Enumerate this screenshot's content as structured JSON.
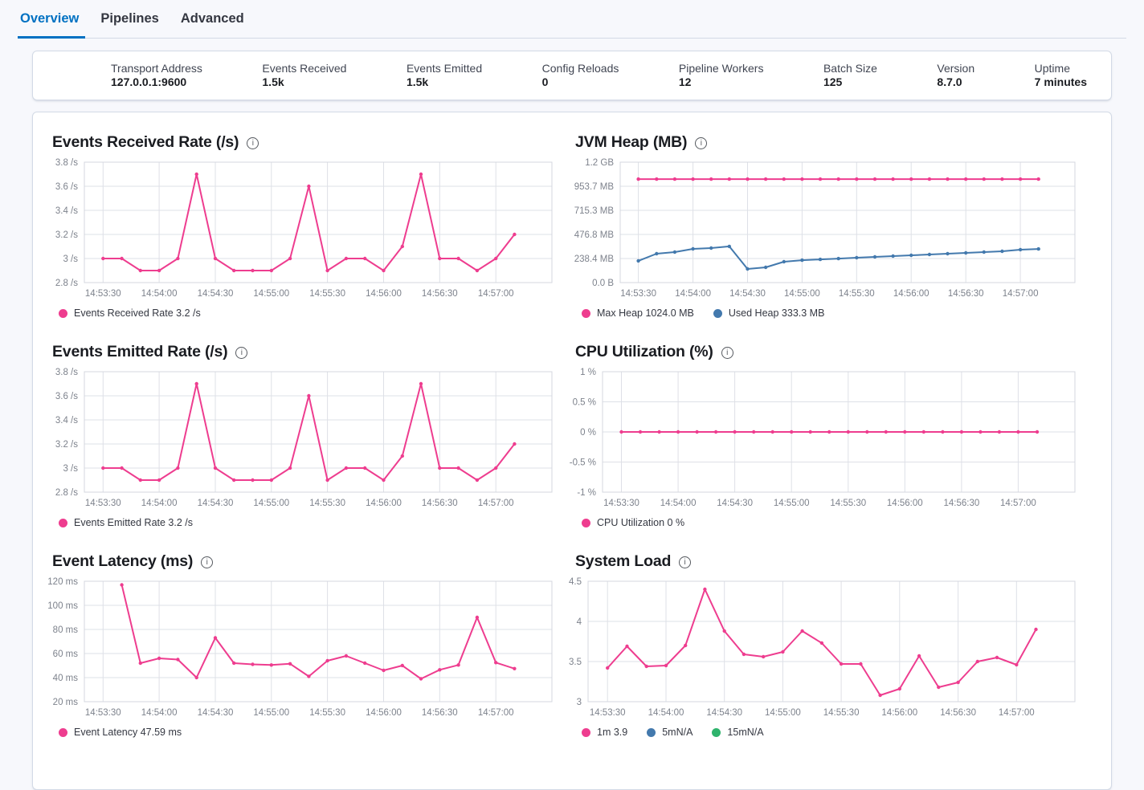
{
  "tabs": [
    {
      "label": "Overview",
      "active": true
    },
    {
      "label": "Pipelines",
      "active": false
    },
    {
      "label": "Advanced",
      "active": false
    }
  ],
  "summary": {
    "items": [
      {
        "label": "Transport Address",
        "value": "127.0.0.1:9600"
      },
      {
        "label": "Events Received",
        "value": "1.5k"
      },
      {
        "label": "Events Emitted",
        "value": "1.5k"
      },
      {
        "label": "Config Reloads",
        "value": "0"
      },
      {
        "label": "Pipeline Workers",
        "value": "12"
      },
      {
        "label": "Batch Size",
        "value": "125"
      },
      {
        "label": "Version",
        "value": "8.7.0"
      },
      {
        "label": "Uptime",
        "value": "7 minutes"
      }
    ]
  },
  "icons": {
    "info_icon": "circled-i"
  },
  "colors": {
    "pink": "#ee3d8f",
    "blue": "#4379ad",
    "green": "#2fb36c",
    "tab_active_blue": "#0071c2",
    "axis_text": "#7d828c",
    "gridline": "#dee0e7"
  },
  "chart_data": [
    {
      "type": "line",
      "title": "Events Received Rate (/s)",
      "ylim": [
        2.8,
        3.8
      ],
      "xlim": [
        0,
        250
      ],
      "y_ticks": [
        {
          "label": "3.8 /s",
          "v": 3.8
        },
        {
          "label": "3.6 /s",
          "v": 3.6
        },
        {
          "label": "3.4 /s",
          "v": 3.4
        },
        {
          "label": "3.2 /s",
          "v": 3.2
        },
        {
          "label": "3 /s",
          "v": 3.0
        },
        {
          "label": "2.8 /s",
          "v": 2.8
        }
      ],
      "x_ticks": [
        {
          "label": "14:53:30",
          "t": 10
        },
        {
          "label": "14:54:00",
          "t": 40
        },
        {
          "label": "14:54:30",
          "t": 70
        },
        {
          "label": "14:55:00",
          "t": 100
        },
        {
          "label": "14:55:30",
          "t": 130
        },
        {
          "label": "14:56:00",
          "t": 160
        },
        {
          "label": "14:56:30",
          "t": 190
        },
        {
          "label": "14:57:00",
          "t": 220
        }
      ],
      "series": [
        {
          "name": "Events Received Rate",
          "color": "#ee3d8f",
          "start_t": 10,
          "step": 10,
          "values": [
            3.0,
            3.0,
            2.9,
            2.9,
            3.0,
            3.7,
            3.0,
            2.9,
            2.9,
            2.9,
            3.0,
            3.6,
            2.9,
            3.0,
            3.0,
            2.9,
            3.1,
            3.7,
            3.0,
            3.0,
            2.9,
            3.0,
            3.2
          ]
        }
      ],
      "legend": [
        {
          "color": "#ee3d8f",
          "text": "Events Received Rate 3.2 /s"
        }
      ]
    },
    {
      "type": "line",
      "title": "JVM Heap (MB)",
      "ylim": [
        0,
        1192
      ],
      "xlim": [
        0,
        250
      ],
      "y_ticks": [
        {
          "label": "1.2 GB",
          "v": 1192
        },
        {
          "label": "953.7 MB",
          "v": 953.7
        },
        {
          "label": "715.3 MB",
          "v": 715.3
        },
        {
          "label": "476.8 MB",
          "v": 476.8
        },
        {
          "label": "238.4 MB",
          "v": 238.4
        },
        {
          "label": "0.0 B",
          "v": 0
        }
      ],
      "x_ticks": [
        {
          "label": "14:53:30",
          "t": 10
        },
        {
          "label": "14:54:00",
          "t": 40
        },
        {
          "label": "14:54:30",
          "t": 70
        },
        {
          "label": "14:55:00",
          "t": 100
        },
        {
          "label": "14:55:30",
          "t": 130
        },
        {
          "label": "14:56:00",
          "t": 160
        },
        {
          "label": "14:56:30",
          "t": 190
        },
        {
          "label": "14:57:00",
          "t": 220
        }
      ],
      "series": [
        {
          "name": "Max Heap",
          "color": "#ee3d8f",
          "start_t": 10,
          "step": 10,
          "values": [
            1024,
            1024,
            1024,
            1024,
            1024,
            1024,
            1024,
            1024,
            1024,
            1024,
            1024,
            1024,
            1024,
            1024,
            1024,
            1024,
            1024,
            1024,
            1024,
            1024,
            1024,
            1024,
            1024
          ]
        },
        {
          "name": "Used Heap",
          "color": "#4379ad",
          "start_t": 10,
          "step": 10,
          "values": [
            215,
            286,
            302,
            334,
            342,
            358,
            135,
            151,
            207,
            222,
            230,
            238,
            246,
            254,
            262,
            270,
            278,
            286,
            294,
            302,
            310,
            326,
            333
          ]
        }
      ],
      "legend": [
        {
          "color": "#ee3d8f",
          "text": "Max Heap 1024.0 MB"
        },
        {
          "color": "#4379ad",
          "text": "Used Heap 333.3 MB"
        }
      ]
    },
    {
      "type": "line",
      "title": "Events Emitted Rate (/s)",
      "ylim": [
        2.8,
        3.8
      ],
      "xlim": [
        0,
        250
      ],
      "y_ticks": [
        {
          "label": "3.8 /s",
          "v": 3.8
        },
        {
          "label": "3.6 /s",
          "v": 3.6
        },
        {
          "label": "3.4 /s",
          "v": 3.4
        },
        {
          "label": "3.2 /s",
          "v": 3.2
        },
        {
          "label": "3 /s",
          "v": 3.0
        },
        {
          "label": "2.8 /s",
          "v": 2.8
        }
      ],
      "x_ticks": [
        {
          "label": "14:53:30",
          "t": 10
        },
        {
          "label": "14:54:00",
          "t": 40
        },
        {
          "label": "14:54:30",
          "t": 70
        },
        {
          "label": "14:55:00",
          "t": 100
        },
        {
          "label": "14:55:30",
          "t": 130
        },
        {
          "label": "14:56:00",
          "t": 160
        },
        {
          "label": "14:56:30",
          "t": 190
        },
        {
          "label": "14:57:00",
          "t": 220
        }
      ],
      "series": [
        {
          "name": "Events Emitted Rate",
          "color": "#ee3d8f",
          "start_t": 10,
          "step": 10,
          "values": [
            3.0,
            3.0,
            2.9,
            2.9,
            3.0,
            3.7,
            3.0,
            2.9,
            2.9,
            2.9,
            3.0,
            3.6,
            2.9,
            3.0,
            3.0,
            2.9,
            3.1,
            3.7,
            3.0,
            3.0,
            2.9,
            3.0,
            3.2
          ]
        }
      ],
      "legend": [
        {
          "color": "#ee3d8f",
          "text": "Events Emitted Rate 3.2 /s"
        }
      ]
    },
    {
      "type": "line",
      "title": "CPU Utilization (%)",
      "ylim": [
        -1,
        1
      ],
      "xlim": [
        0,
        250
      ],
      "y_ticks": [
        {
          "label": "1 %",
          "v": 1
        },
        {
          "label": "0.5 %",
          "v": 0.5
        },
        {
          "label": "0 %",
          "v": 0
        },
        {
          "label": "-0.5 %",
          "v": -0.5
        },
        {
          "label": "-1 %",
          "v": -1
        }
      ],
      "x_ticks": [
        {
          "label": "14:53:30",
          "t": 10
        },
        {
          "label": "14:54:00",
          "t": 40
        },
        {
          "label": "14:54:30",
          "t": 70
        },
        {
          "label": "14:55:00",
          "t": 100
        },
        {
          "label": "14:55:30",
          "t": 130
        },
        {
          "label": "14:56:00",
          "t": 160
        },
        {
          "label": "14:56:30",
          "t": 190
        },
        {
          "label": "14:57:00",
          "t": 220
        }
      ],
      "series": [
        {
          "name": "CPU Utilization",
          "color": "#ee3d8f",
          "start_t": 10,
          "step": 10,
          "values": [
            0,
            0,
            0,
            0,
            0,
            0,
            0,
            0,
            0,
            0,
            0,
            0,
            0,
            0,
            0,
            0,
            0,
            0,
            0,
            0,
            0,
            0,
            0
          ]
        }
      ],
      "legend": [
        {
          "color": "#ee3d8f",
          "text": "CPU Utilization 0 %"
        }
      ]
    },
    {
      "type": "line",
      "title": "Event Latency (ms)",
      "ylim": [
        20,
        120
      ],
      "xlim": [
        0,
        250
      ],
      "y_ticks": [
        {
          "label": "120 ms",
          "v": 120
        },
        {
          "label": "100 ms",
          "v": 100
        },
        {
          "label": "80 ms",
          "v": 80
        },
        {
          "label": "60 ms",
          "v": 60
        },
        {
          "label": "40 ms",
          "v": 40
        },
        {
          "label": "20 ms",
          "v": 20
        }
      ],
      "x_ticks": [
        {
          "label": "14:53:30",
          "t": 10
        },
        {
          "label": "14:54:00",
          "t": 40
        },
        {
          "label": "14:54:30",
          "t": 70
        },
        {
          "label": "14:55:00",
          "t": 100
        },
        {
          "label": "14:55:30",
          "t": 130
        },
        {
          "label": "14:56:00",
          "t": 160
        },
        {
          "label": "14:56:30",
          "t": 190
        },
        {
          "label": "14:57:00",
          "t": 220
        }
      ],
      "series": [
        {
          "name": "Event Latency",
          "color": "#ee3d8f",
          "start_t": 20,
          "step": 10,
          "values": [
            117,
            52,
            56,
            55,
            40,
            73,
            52,
            51,
            50.5,
            51.5,
            41,
            54,
            58,
            52,
            46,
            50,
            39,
            46.5,
            50.5,
            90,
            52.5,
            47.5
          ]
        }
      ],
      "legend": [
        {
          "color": "#ee3d8f",
          "text": "Event Latency 47.59 ms"
        }
      ]
    },
    {
      "type": "line",
      "title": "System Load",
      "ylim": [
        3,
        4.5
      ],
      "xlim": [
        0,
        250
      ],
      "y_ticks": [
        {
          "label": "4.5",
          "v": 4.5
        },
        {
          "label": "4",
          "v": 4
        },
        {
          "label": "3.5",
          "v": 3.5
        },
        {
          "label": "3",
          "v": 3
        }
      ],
      "x_ticks": [
        {
          "label": "14:53:30",
          "t": 10
        },
        {
          "label": "14:54:00",
          "t": 40
        },
        {
          "label": "14:54:30",
          "t": 70
        },
        {
          "label": "14:55:00",
          "t": 100
        },
        {
          "label": "14:55:30",
          "t": 130
        },
        {
          "label": "14:56:00",
          "t": 160
        },
        {
          "label": "14:56:30",
          "t": 190
        },
        {
          "label": "14:57:00",
          "t": 220
        }
      ],
      "series": [
        {
          "name": "1m",
          "color": "#ee3d8f",
          "start_t": 10,
          "step": 10,
          "values": [
            3.42,
            3.69,
            3.44,
            3.45,
            3.7,
            4.4,
            3.88,
            3.59,
            3.56,
            3.62,
            3.88,
            3.73,
            3.47,
            3.47,
            3.08,
            3.16,
            3.57,
            3.18,
            3.24,
            3.5,
            3.55,
            3.46,
            3.9
          ]
        }
      ],
      "legend": [
        {
          "color": "#ee3d8f",
          "text": "1m 3.9"
        },
        {
          "color": "#4379ad",
          "text": "5mN/A"
        },
        {
          "color": "#2fb36c",
          "text": "15mN/A"
        }
      ]
    }
  ]
}
